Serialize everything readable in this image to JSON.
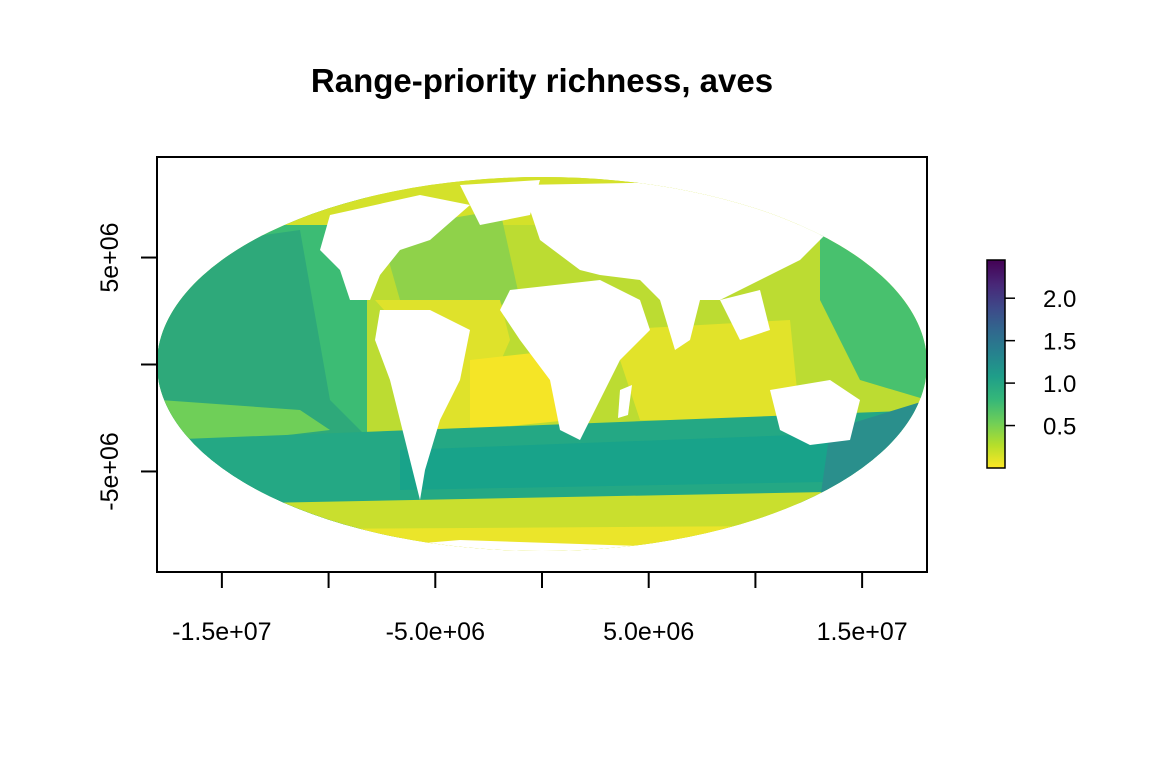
{
  "chart_data": {
    "type": "heatmap",
    "title": "Range-priority richness, aves",
    "projection": "mollweide",
    "xlabel": "",
    "ylabel": "",
    "x_ticks": [
      {
        "value": -15000000,
        "label": "-1.5e+07"
      },
      {
        "value": -10000000,
        "label": ""
      },
      {
        "value": -5000000,
        "label": "-5.0e+06"
      },
      {
        "value": 0,
        "label": ""
      },
      {
        "value": 5000000,
        "label": "5.0e+06"
      },
      {
        "value": 10000000,
        "label": ""
      },
      {
        "value": 15000000,
        "label": "1.5e+07"
      }
    ],
    "y_ticks": [
      {
        "value": 5000000,
        "label": "5e+06"
      },
      {
        "value": 0,
        "label": ""
      },
      {
        "value": -5000000,
        "label": "-5e+06"
      }
    ],
    "xlim": [
      -18040000,
      18040000
    ],
    "ylim": [
      -9700000,
      9700000
    ],
    "legend": {
      "placement": "right",
      "range": [
        0.0,
        2.45
      ],
      "ticks": [
        {
          "value": 0.5,
          "label": "0.5"
        },
        {
          "value": 1.0,
          "label": "1.0"
        },
        {
          "value": 1.5,
          "label": "1.5"
        },
        {
          "value": 2.0,
          "label": "2.0"
        }
      ],
      "colors": [
        "#fde725",
        "#b5de2b",
        "#6ece58",
        "#35b779",
        "#1f9e89",
        "#26828e",
        "#31688e",
        "#3e4989",
        "#482878",
        "#440154"
      ]
    }
  }
}
